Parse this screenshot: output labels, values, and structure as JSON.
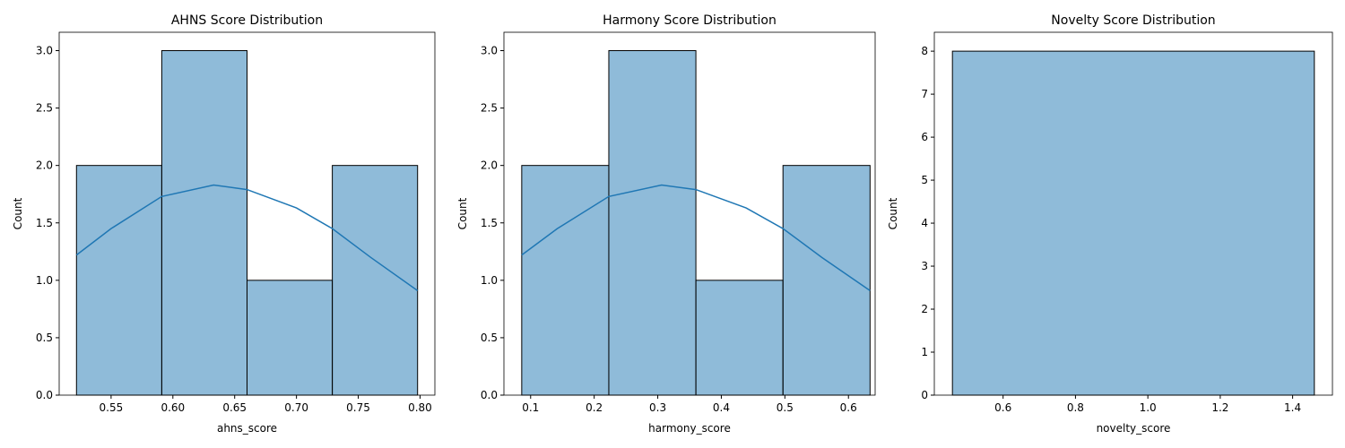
{
  "chart_data": [
    {
      "type": "histogram",
      "title": "AHNS Score Distribution",
      "xlabel": "ahns_score",
      "ylabel": "Count",
      "bins": [
        0.522,
        0.591,
        0.66,
        0.729,
        0.798
      ],
      "values": [
        2,
        3,
        1,
        2
      ],
      "color": "#1f77b4",
      "kde": {
        "x": [
          0.522,
          0.55,
          0.591,
          0.633,
          0.66,
          0.7,
          0.729,
          0.76,
          0.798
        ],
        "values": [
          1.22,
          1.45,
          1.73,
          1.83,
          1.79,
          1.63,
          1.45,
          1.2,
          0.91
        ],
        "color": "#1f77b4"
      },
      "xlim": [
        0.508,
        0.812
      ],
      "ylim": [
        0,
        3.16
      ],
      "xticks": [
        0.55,
        {
          "value": 0.6,
          "label": "0.60"
        },
        0.65,
        {
          "value": 0.7,
          "label": "0.70"
        },
        0.75,
        {
          "value": 0.8,
          "label": "0.80"
        }
      ],
      "yticks": [
        {
          "value": 0,
          "label": "0.0"
        },
        0.5,
        {
          "value": 1,
          "label": "1.0"
        },
        1.5,
        {
          "value": 2,
          "label": "2.0"
        },
        2.5,
        {
          "value": 3,
          "label": "3.0"
        }
      ]
    },
    {
      "type": "histogram",
      "title": "Harmony Score Distribution",
      "xlabel": "harmony_score",
      "ylabel": "Count",
      "bins": [
        0.086,
        0.223,
        0.36,
        0.497,
        0.634
      ],
      "values": [
        2,
        3,
        1,
        2
      ],
      "color": "#1f77b4",
      "kde": {
        "x": [
          0.086,
          0.142,
          0.223,
          0.306,
          0.36,
          0.439,
          0.497,
          0.558,
          0.634
        ],
        "values": [
          1.22,
          1.45,
          1.73,
          1.83,
          1.79,
          1.63,
          1.45,
          1.2,
          0.91
        ],
        "color": "#1f77b4"
      },
      "xlim": [
        0.058,
        0.642
      ],
      "ylim": [
        0,
        3.16
      ],
      "xticks": [
        0.1,
        0.2,
        0.3,
        0.4,
        0.5,
        0.6
      ],
      "yticks": [
        {
          "value": 0,
          "label": "0.0"
        },
        0.5,
        {
          "value": 1,
          "label": "1.0"
        },
        1.5,
        {
          "value": 2,
          "label": "2.0"
        },
        2.5,
        {
          "value": 3,
          "label": "3.0"
        }
      ]
    },
    {
      "type": "histogram",
      "title": "Novelty Score Distribution",
      "xlabel": "novelty_score",
      "ylabel": "Count",
      "bins": [
        0.46,
        1.46
      ],
      "values": [
        8
      ],
      "color": "#1f77b4",
      "xlim": [
        0.41,
        1.51
      ],
      "ylim": [
        0,
        8.44
      ],
      "xticks": [
        0.6,
        0.8,
        {
          "value": 1,
          "label": "1.0"
        },
        1.2,
        1.4
      ],
      "yticks": [
        0,
        1,
        2,
        3,
        4,
        5,
        6,
        7,
        8
      ]
    }
  ]
}
